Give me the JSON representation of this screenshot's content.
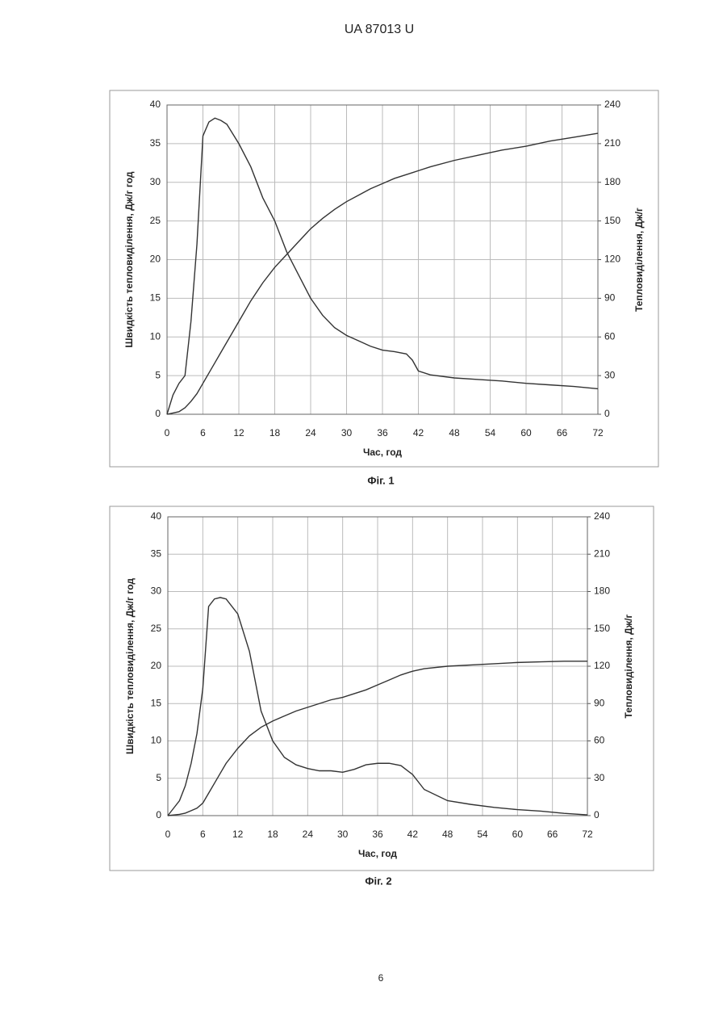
{
  "header": "UA   87013   U",
  "chart_data": [
    {
      "type": "line",
      "caption": "Фіг. 1",
      "x_label": "Час, год",
      "y_label": "Швидкість тепловиділення, Дж/г год",
      "y2_label": "Тепловиділення, Дж/г",
      "xlim": [
        0,
        72
      ],
      "xticks": [
        0,
        6,
        12,
        18,
        24,
        30,
        36,
        42,
        48,
        54,
        60,
        66,
        72
      ],
      "ylim": [
        0,
        40
      ],
      "yticks": [
        0,
        5,
        10,
        15,
        20,
        25,
        30,
        35,
        40
      ],
      "y2lim": [
        0,
        240
      ],
      "y2ticks": [
        0,
        30,
        60,
        90,
        120,
        150,
        180,
        210,
        240
      ],
      "grid": true,
      "series": [
        {
          "color": "#333333",
          "x": [
            0,
            1,
            2,
            3,
            4,
            5,
            6,
            7,
            8,
            9,
            10,
            12,
            14,
            16,
            18,
            20,
            22,
            24,
            26,
            28,
            30,
            32,
            34,
            36,
            38,
            40,
            41,
            42,
            44,
            48,
            52,
            56,
            60,
            64,
            68,
            72
          ],
          "values": [
            0,
            2.5,
            4,
            5,
            12,
            22,
            36,
            37.8,
            38.3,
            38,
            37.5,
            35,
            32,
            28,
            25,
            21,
            18,
            15,
            12.8,
            11.2,
            10.2,
            9.5,
            8.8,
            8.3,
            8.1,
            7.8,
            7,
            5.6,
            5.1,
            4.7,
            4.5,
            4.3,
            4,
            3.8,
            3.6,
            3.3
          ]
        },
        {
          "color": "#333333",
          "axis": "y2",
          "x": [
            0,
            1,
            2,
            3,
            4,
            5,
            6,
            7,
            8,
            9,
            10,
            12,
            14,
            16,
            18,
            20,
            22,
            24,
            26,
            28,
            30,
            32,
            34,
            36,
            38,
            40,
            41,
            42,
            44,
            48,
            52,
            56,
            60,
            64,
            68,
            72
          ],
          "values": [
            0,
            1,
            2,
            5,
            10,
            16,
            24,
            32,
            40,
            48,
            56,
            72,
            88,
            102,
            114,
            124,
            134,
            144,
            152,
            159,
            165,
            170,
            175,
            179,
            183,
            186,
            187.5,
            189,
            192,
            197,
            201,
            205,
            208,
            212,
            215,
            218
          ]
        }
      ]
    },
    {
      "type": "line",
      "caption": "Фіг. 2",
      "x_label": "Час, год",
      "y_label": "Швидкість тепловиділення, Дж/г год",
      "y2_label": "Тепловиділення, Дж/г",
      "xlim": [
        0,
        72
      ],
      "xticks": [
        0,
        6,
        12,
        18,
        24,
        30,
        36,
        42,
        48,
        54,
        60,
        66,
        72
      ],
      "ylim": [
        0,
        40
      ],
      "yticks": [
        0,
        5,
        10,
        15,
        20,
        25,
        30,
        35,
        40
      ],
      "y2lim": [
        0,
        240
      ],
      "y2ticks": [
        0,
        30,
        60,
        90,
        120,
        150,
        180,
        210,
        240
      ],
      "grid": true,
      "series": [
        {
          "color": "#333333",
          "x": [
            0,
            1,
            2,
            3,
            4,
            5,
            6,
            7,
            8,
            9,
            10,
            12,
            14,
            16,
            18,
            20,
            22,
            24,
            26,
            28,
            30,
            32,
            34,
            36,
            38,
            40,
            42,
            44,
            48,
            52,
            56,
            60,
            64,
            68,
            72
          ],
          "values": [
            0,
            1,
            2,
            4,
            7,
            11,
            17,
            28,
            29,
            29.2,
            29,
            27,
            22,
            14,
            10,
            7.8,
            6.8,
            6.3,
            6,
            6,
            5.8,
            6.2,
            6.8,
            7,
            7,
            6.7,
            5.5,
            3.5,
            2,
            1.5,
            1.1,
            0.8,
            0.6,
            0.3,
            0.1
          ]
        },
        {
          "color": "#333333",
          "axis": "y2",
          "x": [
            0,
            1,
            2,
            3,
            4,
            5,
            6,
            7,
            8,
            9,
            10,
            12,
            14,
            16,
            18,
            20,
            22,
            24,
            26,
            28,
            30,
            32,
            34,
            36,
            38,
            40,
            42,
            44,
            48,
            52,
            56,
            60,
            64,
            68,
            72
          ],
          "values": [
            0,
            0.5,
            1,
            2,
            4,
            6,
            10,
            18,
            26,
            34,
            42,
            54,
            64,
            71,
            76,
            80,
            84,
            87,
            90,
            93,
            95,
            98,
            101,
            105,
            109,
            113,
            116,
            118,
            120,
            121,
            122,
            123,
            123.5,
            124,
            124
          ]
        }
      ]
    }
  ],
  "page_number": "6"
}
